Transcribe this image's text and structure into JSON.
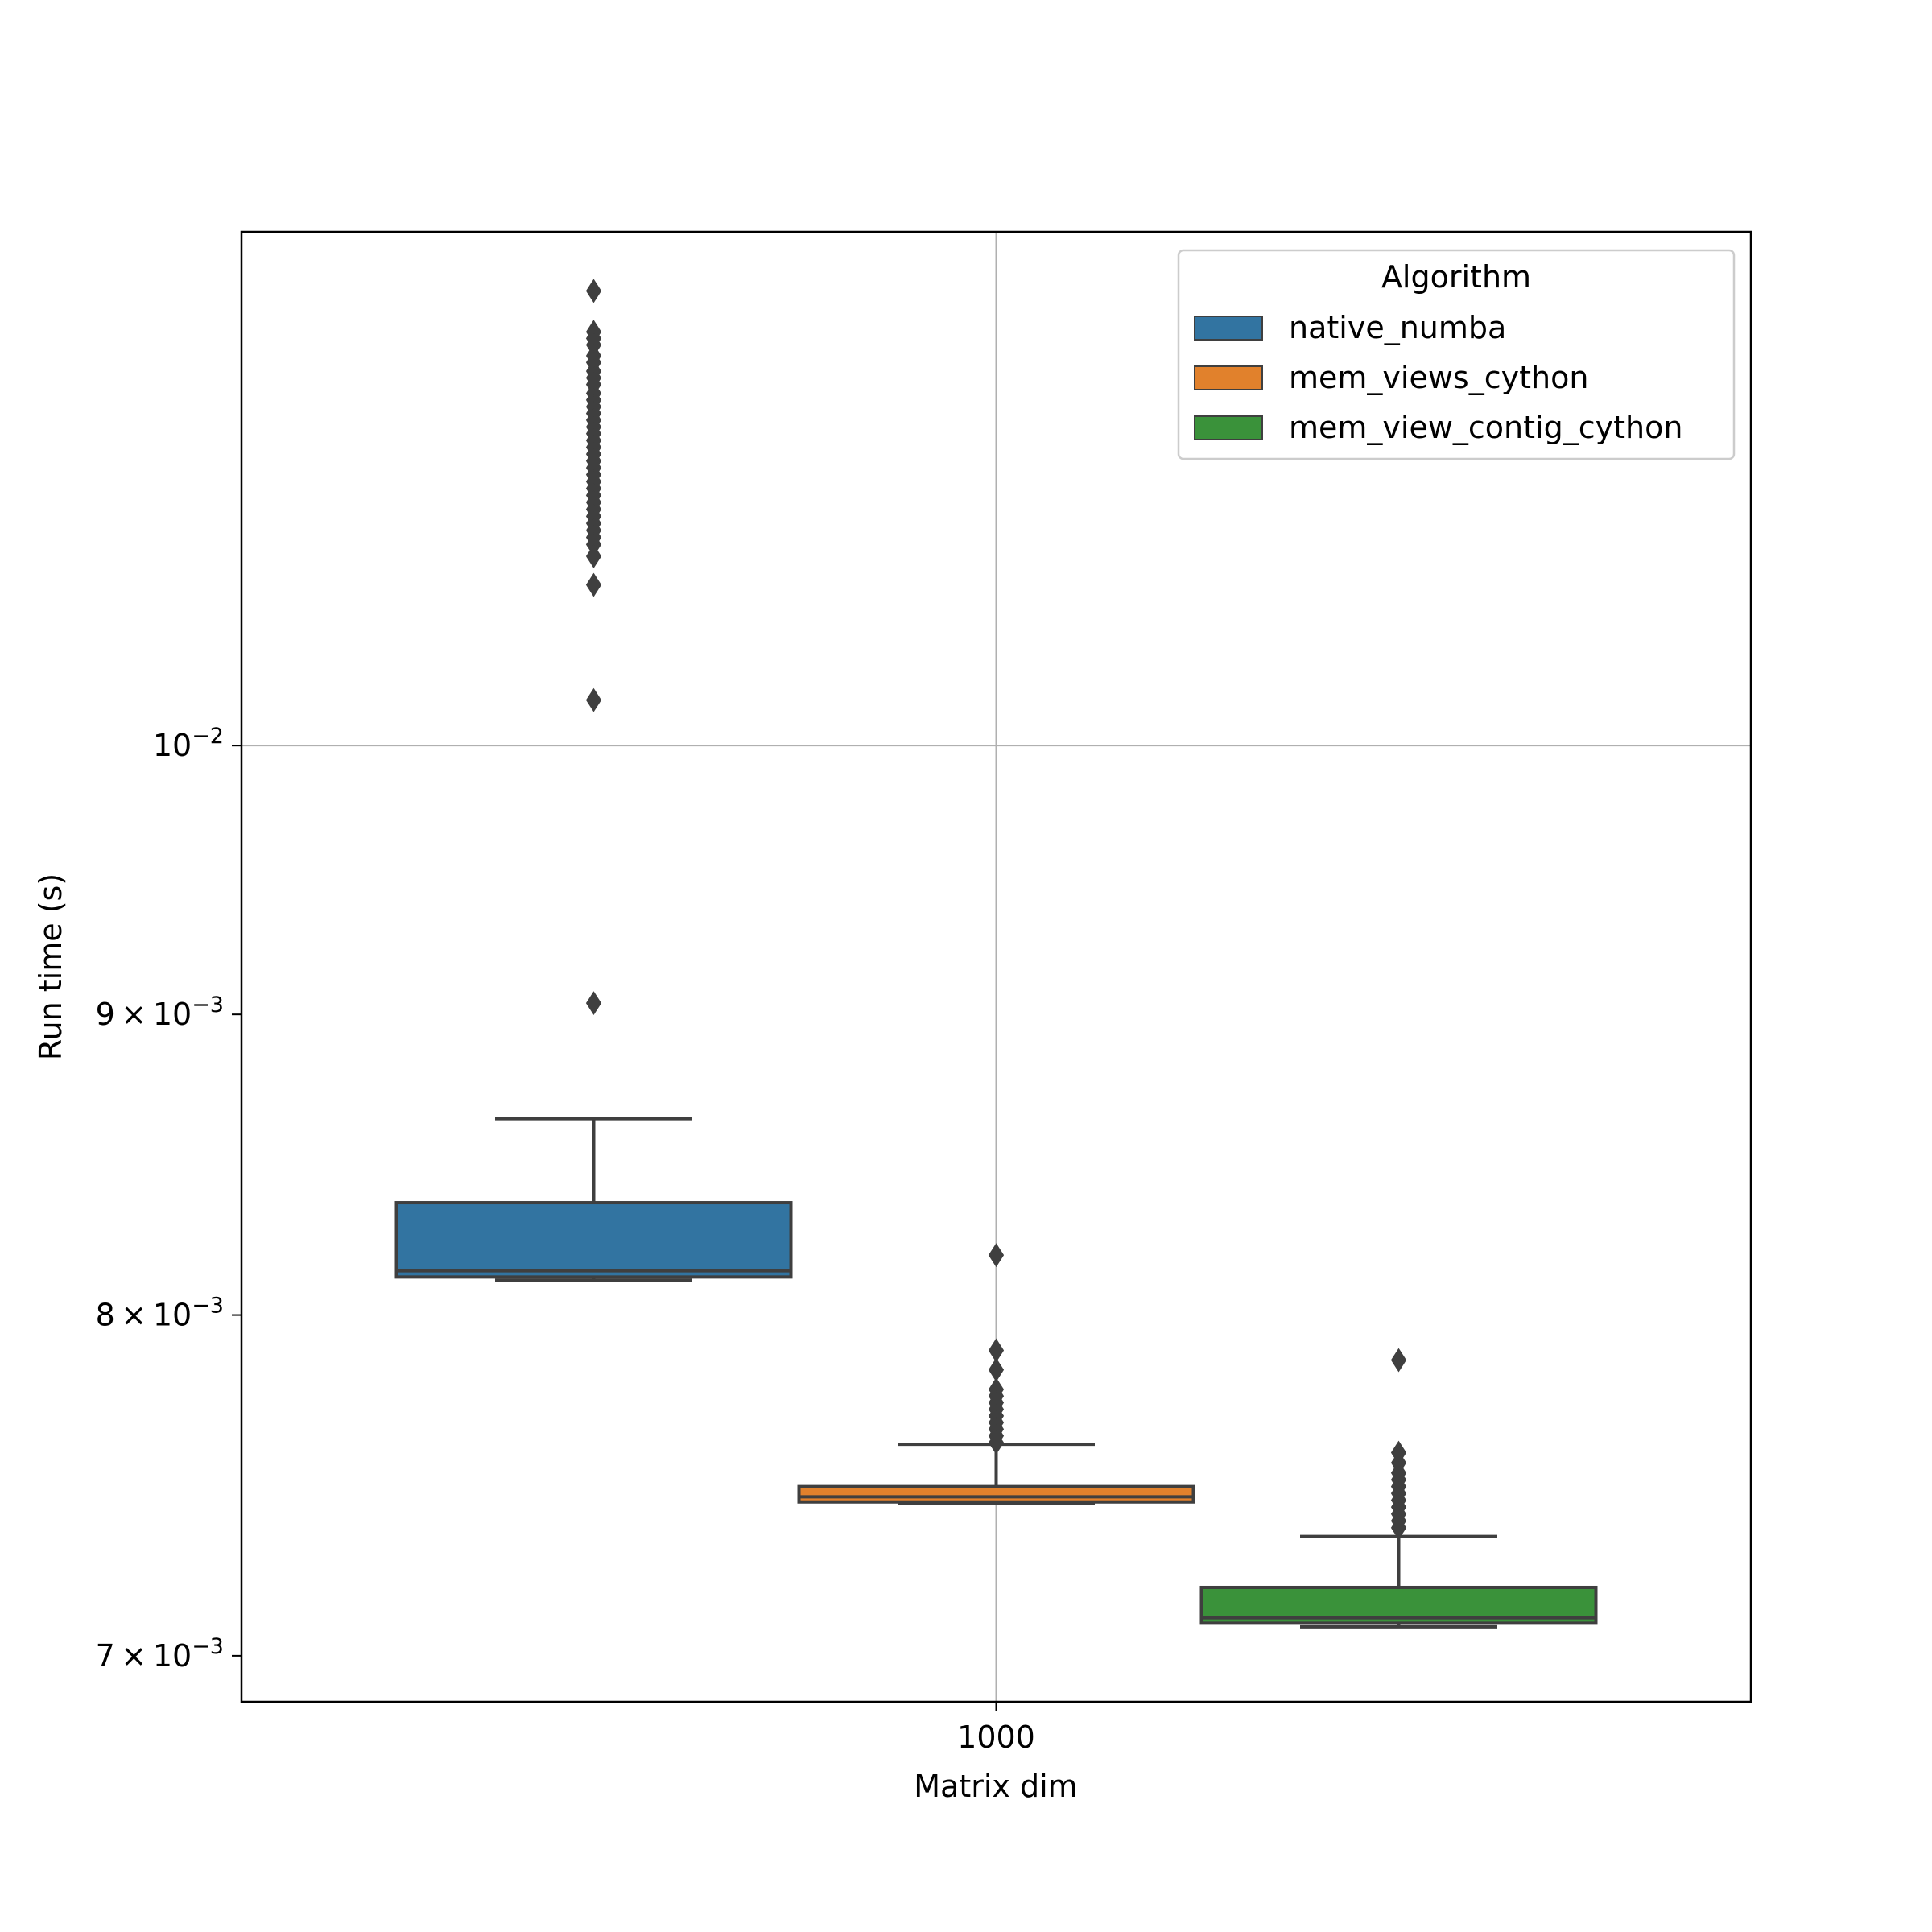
{
  "chart_data": {
    "type": "box",
    "title": "",
    "xlabel": "Matrix dim",
    "ylabel": "Run time (s)",
    "y_scale": "log",
    "ylim": [
      0.006875,
      0.01223
    ],
    "grid": true,
    "categories": [
      "1000"
    ],
    "y_ticks": [
      {
        "value": 0.007,
        "base": "7",
        "exp": "−3"
      },
      {
        "value": 0.008,
        "base": "8",
        "exp": "−3"
      },
      {
        "value": 0.009,
        "base": "9",
        "exp": "−3"
      },
      {
        "value": 0.01,
        "base": "",
        "exp": "−2"
      }
    ],
    "legend": {
      "title": "Algorithm",
      "position": "top-right"
    },
    "series": [
      {
        "name": "native_numba",
        "color": "#3274a1",
        "q1": 0.00812,
        "median": 0.00814,
        "q3": 0.00836,
        "whisker_low": 0.00811,
        "whisker_high": 0.00864,
        "outliers": [
          0.01195,
          0.01176,
          0.01173,
          0.0117,
          0.01165,
          0.01162,
          0.01158,
          0.01155,
          0.01152,
          0.01148,
          0.01145,
          0.01142,
          0.01139,
          0.01136,
          0.01133,
          0.0113,
          0.01127,
          0.01124,
          0.01121,
          0.01118,
          0.01115,
          0.01112,
          0.01109,
          0.01106,
          0.01103,
          0.011,
          0.01097,
          0.01094,
          0.01091,
          0.01088,
          0.01085,
          0.01082,
          0.01077,
          0.01065,
          0.01018,
          0.00904
        ]
      },
      {
        "name": "mem_views_cython",
        "color": "#e1812c",
        "q1": 0.007435,
        "median": 0.00745,
        "q3": 0.00748,
        "whisker_low": 0.00743,
        "whisker_high": 0.007605,
        "outliers": [
          0.00819,
          0.00789,
          0.00783,
          0.00777,
          0.00775,
          0.00773,
          0.00771,
          0.00769,
          0.00767,
          0.00765,
          0.00763,
          0.00761
        ]
      },
      {
        "name": "mem_view_contig_cython",
        "color": "#3a923a",
        "q1": 0.00709,
        "median": 0.007105,
        "q3": 0.00719,
        "whisker_low": 0.00708,
        "whisker_high": 0.007335,
        "outliers": [
          0.00786,
          0.00758,
          0.00755,
          0.00752,
          0.0075,
          0.00748,
          0.00746,
          0.00744,
          0.00742,
          0.0074,
          0.00738,
          0.00736
        ]
      }
    ]
  }
}
